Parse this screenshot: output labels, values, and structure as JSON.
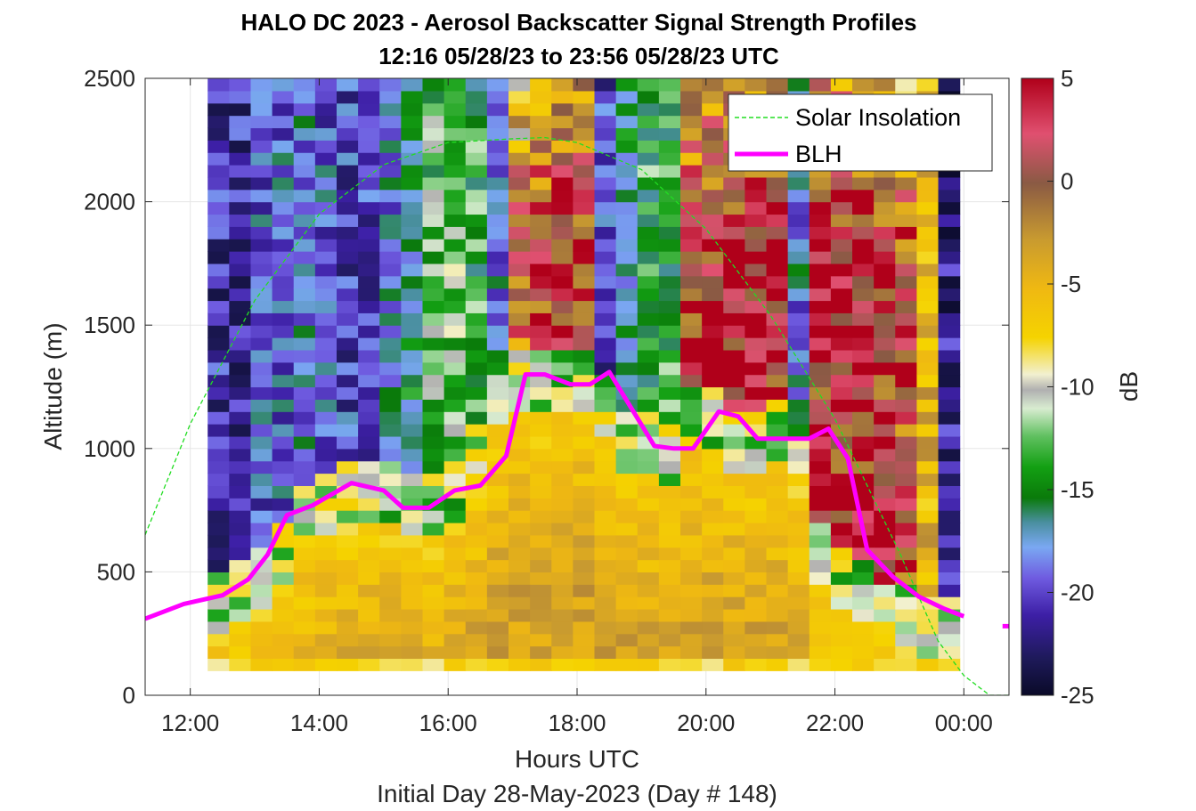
{
  "chart_data": {
    "type": "heatmap",
    "title": "HALO DC 2023 - Aerosol Backscatter Signal Strength Profiles",
    "subtitle": "12:16 05/28/23 to 23:56 05/28/23  UTC",
    "xlabel": "Hours UTC",
    "xlabel2": "Initial Day 28-May-2023 (Day # 148)",
    "ylabel": "Altitude (m)",
    "colorbar_label": "dB",
    "xlim": [
      11.3,
      24.7
    ],
    "ylim": [
      0,
      2500
    ],
    "x_ticks": [
      12,
      14,
      16,
      18,
      20,
      22,
      24
    ],
    "x_tick_labels": [
      "12:00",
      "14:00",
      "16:00",
      "18:00",
      "20:00",
      "22:00",
      "00:00"
    ],
    "y_ticks": [
      0,
      500,
      1000,
      1500,
      2000,
      2500
    ],
    "y_tick_labels": [
      "0",
      "500",
      "1000",
      "1500",
      "2000",
      "2500"
    ],
    "clim": [
      -25,
      5
    ],
    "cbar_ticks": [
      5,
      0,
      -5,
      -10,
      -15,
      -20,
      -25
    ],
    "cbar_tick_labels": [
      "5",
      "0",
      "-5",
      "-10",
      "-15",
      "-20",
      "-25"
    ],
    "grid": true,
    "legend_position": "top-right",
    "legend": [
      "Solar Insolation",
      "BLH"
    ],
    "colors": {
      "solar": "#22dd22",
      "blh": "#ff00ff",
      "background": "#ffffff"
    },
    "heatmap": {
      "x_start": 12.27,
      "x_step": 0.3333,
      "n_cols": 35,
      "y_start": 100,
      "y_step": 50,
      "n_rows": 48,
      "note_dB_fields": "values generated per column from the listed profile parameters",
      "blh_top_for_cells": [
        380,
        430,
        450,
        560,
        700,
        760,
        800,
        840,
        830,
        790,
        770,
        830,
        960,
        1200,
        1280,
        1270,
        1260,
        1290,
        1150,
        1000,
        1000,
        990,
        1140,
        1120,
        1040,
        1040,
        1060,
        950,
        560,
        480,
        400,
        340,
        300,
        280,
        270
      ],
      "upper_signal_dB": [
        -21,
        -21,
        -19,
        -19,
        -18,
        -19,
        -20,
        -20,
        -18,
        -16,
        -13,
        -12,
        -14,
        -18,
        -1,
        2,
        3,
        2,
        -20,
        -16,
        -14,
        -14,
        2,
        3,
        3,
        4,
        3,
        -18,
        3,
        3,
        3,
        2,
        1,
        -5,
        -22
      ]
    },
    "series": [
      {
        "name": "BLH",
        "x": [
          11.3,
          11.9,
          12.5,
          12.9,
          13.2,
          13.5,
          13.9,
          14.5,
          15.0,
          15.3,
          15.7,
          16.1,
          16.5,
          16.9,
          17.2,
          17.5,
          17.9,
          18.2,
          18.5,
          19.2,
          19.5,
          19.8,
          20.2,
          20.5,
          20.8,
          21.1,
          21.6,
          21.9,
          22.2,
          22.5,
          22.9,
          23.3,
          23.7,
          24.0,
          24.6,
          24.7
        ],
        "y": [
          310,
          370,
          405,
          470,
          570,
          730,
          770,
          860,
          830,
          760,
          760,
          830,
          850,
          970,
          1300,
          1300,
          1260,
          1260,
          1310,
          1010,
          1000,
          1000,
          1150,
          1130,
          1040,
          1040,
          1040,
          1080,
          960,
          590,
          480,
          400,
          350,
          320,
          280,
          280
        ]
      },
      {
        "name": "Solar Insolation",
        "x": [
          11.3,
          12.0,
          13.0,
          14.0,
          15.0,
          16.0,
          17.0,
          17.5,
          18.0,
          19.0,
          20.0,
          21.0,
          22.0,
          23.0,
          23.6,
          24.0,
          24.4,
          24.7
        ],
        "y": [
          650,
          1100,
          1600,
          1950,
          2150,
          2240,
          2255,
          2260,
          2240,
          2130,
          1890,
          1540,
          1120,
          580,
          220,
          80,
          0,
          0
        ]
      }
    ]
  }
}
